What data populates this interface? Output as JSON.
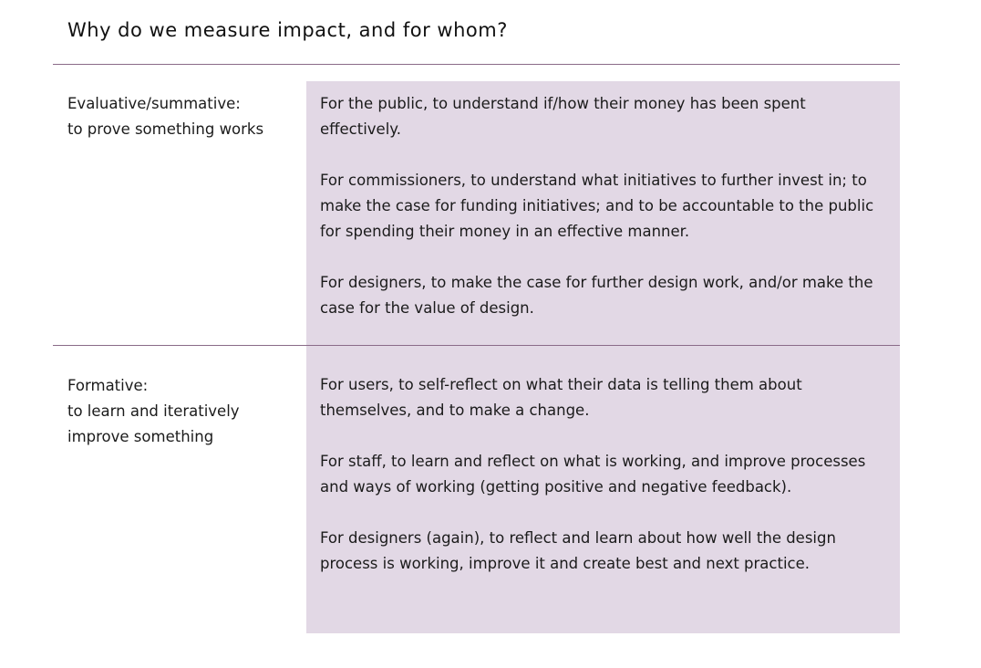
{
  "title": "Why do we measure impact, and for whom?",
  "rows": [
    {
      "label_lines": [
        "Evaluative/summative:",
        "to prove something works"
      ],
      "paragraphs": [
        "For the public, to understand if/how their money has been spent effectively.",
        "For commissioners, to understand what initiatives to further invest in; to make the case for funding initiatives; and to be accountable to the public for spending their money in an effective manner.",
        "For designers, to make the case for further design work, and/or make the case for the value of design."
      ]
    },
    {
      "label_lines": [
        "Formative:",
        "to learn and iteratively",
        "improve something"
      ],
      "paragraphs": [
        "For users, to self-reflect on what their data is telling them about themselves, and to make a change.",
        "For staff, to learn and reflect on what is working, and improve processes and ways of working (getting positive and negative feedback).",
        "For designers (again), to reflect and learn about how well the design process is working, improve it and create best and next practice."
      ]
    }
  ],
  "colors": {
    "panel_fill": "#e2d8e5",
    "rule": "#8a6b88",
    "text": "#1b1b1b"
  }
}
